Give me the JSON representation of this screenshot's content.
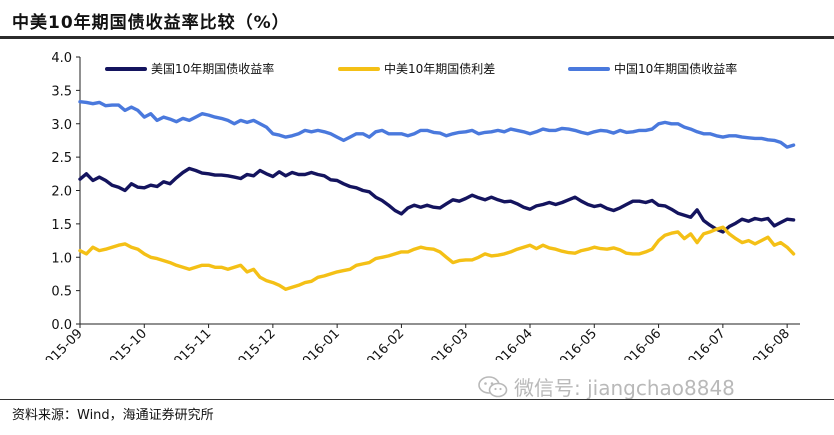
{
  "header": {
    "title": "中美10年期国债收益率比较（%）"
  },
  "footer": {
    "source": "资料来源：Wind，海通证券研究所"
  },
  "watermark": {
    "text": "微信号: jiangchao8848",
    "icon": "wechat-icon"
  },
  "colors": {
    "us": "#14145e",
    "spread": "#f4c016",
    "cn": "#4a79dd"
  },
  "chart_data": {
    "type": "line",
    "title": "中美10年期国债收益率比较（%）",
    "ylabel": "",
    "xlabel": "",
    "ylim": [
      0,
      4
    ],
    "yticks": [
      "0.0",
      "0.5",
      "1.0",
      "1.5",
      "2.0",
      "2.5",
      "3.0",
      "3.5",
      "4.0"
    ],
    "ytick_values": [
      0,
      0.5,
      1,
      1.5,
      2,
      2.5,
      3,
      3.5,
      4
    ],
    "xlim": [
      0,
      11.2
    ],
    "xticks": [
      "2015-09",
      "2015-10",
      "2015-11",
      "2015-12",
      "2016-01",
      "2016-02",
      "2016-03",
      "2016-04",
      "2016-05",
      "2016-06",
      "2016-07",
      "2016-08"
    ],
    "grid": false,
    "legend_position": "top",
    "series": [
      {
        "name": "美国10年期国债收益率",
        "key": "us",
        "x": [
          0,
          0.1,
          0.2,
          0.3,
          0.4,
          0.5,
          0.6,
          0.7,
          0.8,
          0.9,
          1.0,
          1.1,
          1.2,
          1.3,
          1.4,
          1.5,
          1.6,
          1.7,
          1.8,
          1.9,
          2.0,
          2.1,
          2.2,
          2.3,
          2.4,
          2.5,
          2.6,
          2.7,
          2.8,
          2.9,
          3.0,
          3.1,
          3.2,
          3.3,
          3.4,
          3.5,
          3.6,
          3.7,
          3.8,
          3.9,
          4.0,
          4.1,
          4.2,
          4.3,
          4.4,
          4.5,
          4.6,
          4.7,
          4.8,
          4.9,
          5.0,
          5.1,
          5.2,
          5.3,
          5.4,
          5.5,
          5.6,
          5.7,
          5.8,
          5.9,
          6.0,
          6.1,
          6.2,
          6.3,
          6.4,
          6.5,
          6.6,
          6.7,
          6.8,
          6.9,
          7.0,
          7.1,
          7.2,
          7.3,
          7.4,
          7.5,
          7.6,
          7.7,
          7.8,
          7.9,
          8.0,
          8.1,
          8.2,
          8.3,
          8.4,
          8.5,
          8.6,
          8.7,
          8.8,
          8.9,
          9.0,
          9.1,
          9.2,
          9.3,
          9.4,
          9.5,
          9.6,
          9.7,
          9.8,
          9.9,
          10.0,
          10.1,
          10.2,
          10.3,
          10.4,
          10.5,
          10.6,
          10.7,
          10.8,
          10.9,
          11.0,
          11.1
        ],
        "values": [
          2.17,
          2.25,
          2.15,
          2.2,
          2.15,
          2.08,
          2.05,
          2.0,
          2.1,
          2.05,
          2.04,
          2.08,
          2.06,
          2.13,
          2.1,
          2.19,
          2.27,
          2.33,
          2.3,
          2.26,
          2.25,
          2.23,
          2.23,
          2.22,
          2.2,
          2.18,
          2.24,
          2.22,
          2.3,
          2.25,
          2.21,
          2.28,
          2.22,
          2.27,
          2.24,
          2.24,
          2.27,
          2.24,
          2.22,
          2.16,
          2.15,
          2.1,
          2.06,
          2.04,
          2.0,
          1.98,
          1.9,
          1.85,
          1.78,
          1.7,
          1.65,
          1.74,
          1.78,
          1.75,
          1.78,
          1.75,
          1.74,
          1.8,
          1.86,
          1.84,
          1.88,
          1.93,
          1.89,
          1.86,
          1.9,
          1.86,
          1.83,
          1.84,
          1.8,
          1.75,
          1.72,
          1.77,
          1.79,
          1.82,
          1.79,
          1.82,
          1.86,
          1.9,
          1.84,
          1.79,
          1.76,
          1.78,
          1.73,
          1.7,
          1.74,
          1.79,
          1.84,
          1.84,
          1.82,
          1.85,
          1.78,
          1.77,
          1.72,
          1.66,
          1.63,
          1.6,
          1.71,
          1.55,
          1.48,
          1.42,
          1.38,
          1.46,
          1.51,
          1.57,
          1.54,
          1.58,
          1.56,
          1.58,
          1.47,
          1.52,
          1.57,
          1.56
        ]
      },
      {
        "name": "中美10年期国债利差",
        "key": "spread",
        "x": [
          0,
          0.1,
          0.2,
          0.3,
          0.4,
          0.5,
          0.6,
          0.7,
          0.8,
          0.9,
          1.0,
          1.1,
          1.2,
          1.3,
          1.4,
          1.5,
          1.6,
          1.7,
          1.8,
          1.9,
          2.0,
          2.1,
          2.2,
          2.3,
          2.4,
          2.5,
          2.6,
          2.7,
          2.8,
          2.9,
          3.0,
          3.1,
          3.2,
          3.3,
          3.4,
          3.5,
          3.6,
          3.7,
          3.8,
          3.9,
          4.0,
          4.1,
          4.2,
          4.3,
          4.4,
          4.5,
          4.6,
          4.7,
          4.8,
          4.9,
          5.0,
          5.1,
          5.2,
          5.3,
          5.4,
          5.5,
          5.6,
          5.7,
          5.8,
          5.9,
          6.0,
          6.1,
          6.2,
          6.3,
          6.4,
          6.5,
          6.6,
          6.7,
          6.8,
          6.9,
          7.0,
          7.1,
          7.2,
          7.3,
          7.4,
          7.5,
          7.6,
          7.7,
          7.8,
          7.9,
          8.0,
          8.1,
          8.2,
          8.3,
          8.4,
          8.5,
          8.6,
          8.7,
          8.8,
          8.9,
          9.0,
          9.1,
          9.2,
          9.3,
          9.4,
          9.5,
          9.6,
          9.7,
          9.8,
          9.9,
          10.0,
          10.1,
          10.2,
          10.3,
          10.4,
          10.5,
          10.6,
          10.7,
          10.8,
          10.9,
          11.0,
          11.1
        ],
        "values": [
          1.1,
          1.05,
          1.15,
          1.1,
          1.12,
          1.15,
          1.18,
          1.2,
          1.15,
          1.12,
          1.05,
          1.0,
          0.98,
          0.95,
          0.92,
          0.88,
          0.85,
          0.82,
          0.85,
          0.88,
          0.88,
          0.85,
          0.85,
          0.82,
          0.85,
          0.88,
          0.78,
          0.82,
          0.7,
          0.65,
          0.62,
          0.58,
          0.52,
          0.55,
          0.58,
          0.62,
          0.64,
          0.7,
          0.72,
          0.75,
          0.78,
          0.8,
          0.82,
          0.88,
          0.9,
          0.92,
          0.98,
          1.0,
          1.02,
          1.05,
          1.08,
          1.08,
          1.12,
          1.15,
          1.13,
          1.12,
          1.08,
          1.0,
          0.92,
          0.95,
          0.96,
          0.96,
          1.0,
          1.05,
          1.02,
          1.03,
          1.05,
          1.08,
          1.12,
          1.15,
          1.18,
          1.13,
          1.18,
          1.14,
          1.12,
          1.09,
          1.07,
          1.06,
          1.1,
          1.12,
          1.15,
          1.13,
          1.12,
          1.14,
          1.11,
          1.06,
          1.05,
          1.05,
          1.08,
          1.12,
          1.25,
          1.33,
          1.36,
          1.38,
          1.28,
          1.35,
          1.22,
          1.35,
          1.38,
          1.42,
          1.45,
          1.35,
          1.28,
          1.22,
          1.25,
          1.2,
          1.25,
          1.3,
          1.18,
          1.22,
          1.15,
          1.05
        ]
      },
      {
        "name": "中国10年期国债收益率",
        "key": "cn",
        "x": [
          0,
          0.1,
          0.2,
          0.3,
          0.4,
          0.5,
          0.6,
          0.7,
          0.8,
          0.9,
          1.0,
          1.1,
          1.2,
          1.3,
          1.4,
          1.5,
          1.6,
          1.7,
          1.8,
          1.9,
          2.0,
          2.1,
          2.2,
          2.3,
          2.4,
          2.5,
          2.6,
          2.7,
          2.8,
          2.9,
          3.0,
          3.1,
          3.2,
          3.3,
          3.4,
          3.5,
          3.6,
          3.7,
          3.8,
          3.9,
          4.0,
          4.1,
          4.2,
          4.3,
          4.4,
          4.5,
          4.6,
          4.7,
          4.8,
          4.9,
          5.0,
          5.1,
          5.2,
          5.3,
          5.4,
          5.5,
          5.6,
          5.7,
          5.8,
          5.9,
          6.0,
          6.1,
          6.2,
          6.3,
          6.4,
          6.5,
          6.6,
          6.7,
          6.8,
          6.9,
          7.0,
          7.1,
          7.2,
          7.3,
          7.4,
          7.5,
          7.6,
          7.7,
          7.8,
          7.9,
          8.0,
          8.1,
          8.2,
          8.3,
          8.4,
          8.5,
          8.6,
          8.7,
          8.8,
          8.9,
          9.0,
          9.1,
          9.2,
          9.3,
          9.4,
          9.5,
          9.6,
          9.7,
          9.8,
          9.9,
          10.0,
          10.1,
          10.2,
          10.3,
          10.4,
          10.5,
          10.6,
          10.7,
          10.8,
          10.9,
          11.0,
          11.1
        ],
        "values": [
          3.33,
          3.32,
          3.3,
          3.32,
          3.27,
          3.28,
          3.28,
          3.2,
          3.25,
          3.2,
          3.1,
          3.15,
          3.05,
          3.1,
          3.07,
          3.03,
          3.08,
          3.05,
          3.1,
          3.15,
          3.13,
          3.1,
          3.08,
          3.05,
          3.0,
          3.05,
          3.02,
          3.05,
          3.0,
          2.95,
          2.85,
          2.83,
          2.8,
          2.82,
          2.85,
          2.9,
          2.88,
          2.9,
          2.88,
          2.85,
          2.8,
          2.75,
          2.8,
          2.85,
          2.85,
          2.8,
          2.88,
          2.9,
          2.85,
          2.85,
          2.85,
          2.82,
          2.85,
          2.9,
          2.9,
          2.87,
          2.86,
          2.82,
          2.85,
          2.87,
          2.88,
          2.9,
          2.85,
          2.87,
          2.88,
          2.9,
          2.88,
          2.92,
          2.9,
          2.88,
          2.85,
          2.88,
          2.92,
          2.9,
          2.9,
          2.93,
          2.92,
          2.9,
          2.87,
          2.85,
          2.88,
          2.9,
          2.89,
          2.86,
          2.9,
          2.87,
          2.88,
          2.9,
          2.9,
          2.92,
          3.0,
          3.02,
          3.0,
          3.0,
          2.95,
          2.92,
          2.88,
          2.85,
          2.85,
          2.82,
          2.8,
          2.82,
          2.82,
          2.8,
          2.79,
          2.78,
          2.78,
          2.76,
          2.75,
          2.72,
          2.65,
          2.68
        ]
      }
    ]
  }
}
